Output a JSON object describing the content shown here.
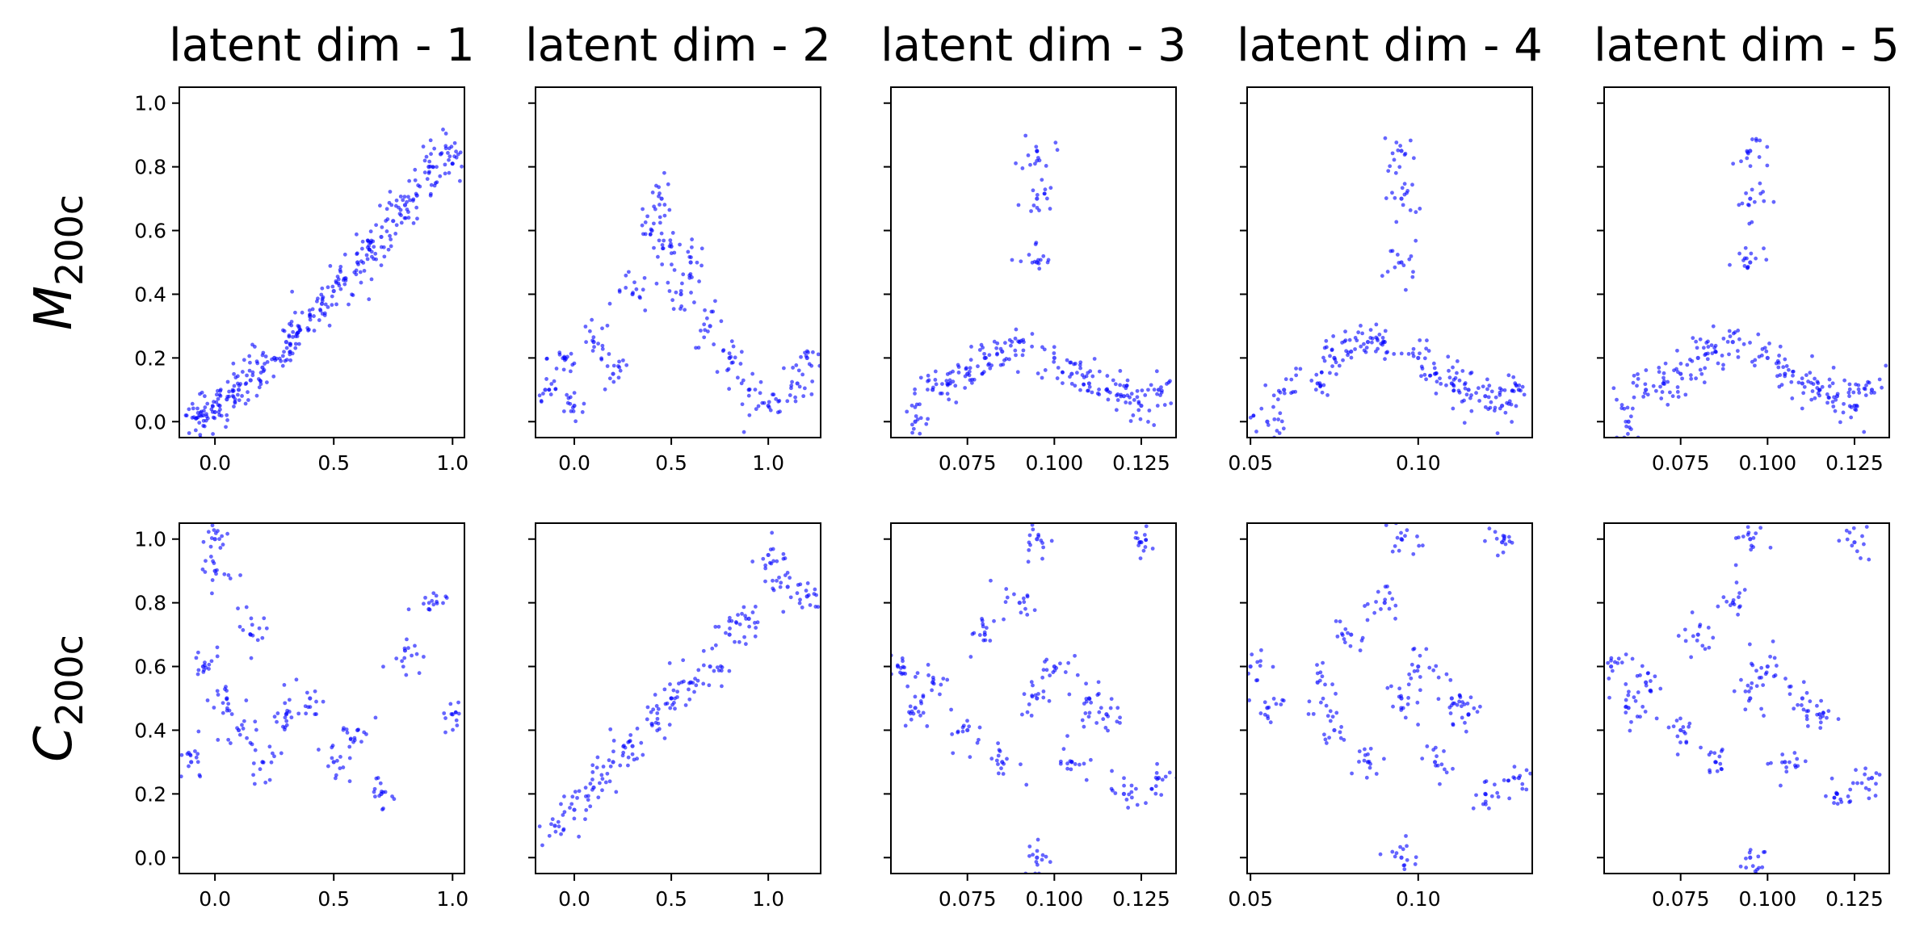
{
  "chart_data": {
    "type": "scatter",
    "point_color": "#0000ff",
    "column_titles": [
      "latent dim - 1",
      "latent dim - 2",
      "latent dim - 3",
      "latent dim - 4",
      "latent dim - 5"
    ],
    "rows": [
      {
        "name": "M",
        "subscript": "200c",
        "ylim": [
          -0.05,
          1.05
        ],
        "yticks": [
          "0.0",
          "0.2",
          "0.4",
          "0.6",
          "0.8",
          "1.0"
        ]
      },
      {
        "name": "C",
        "subscript": "200c",
        "ylim": [
          -0.05,
          1.05
        ],
        "yticks": [
          "0.0",
          "0.2",
          "0.4",
          "0.6",
          "0.8",
          "1.0"
        ]
      }
    ],
    "columns": [
      {
        "xlim": [
          -0.15,
          1.05
        ],
        "xticks": [
          "0.0",
          "0.5",
          "1.0"
        ],
        "xtick_values": [
          0.0,
          0.5,
          1.0
        ]
      },
      {
        "xlim": [
          -0.2,
          1.27
        ],
        "xticks": [
          "0.0",
          "0.5",
          "1.0"
        ],
        "xtick_values": [
          0.0,
          0.5,
          1.0
        ]
      },
      {
        "xlim": [
          0.053,
          0.135
        ],
        "xticks": [
          "0.075",
          "0.100",
          "0.125"
        ],
        "xtick_values": [
          0.075,
          0.1,
          0.125
        ]
      },
      {
        "xlim": [
          0.049,
          0.134
        ],
        "xticks": [
          "0.05",
          "0.10"
        ],
        "xtick_values": [
          0.05,
          0.1
        ]
      },
      {
        "xlim": [
          0.053,
          0.135
        ],
        "xticks": [
          "0.075",
          "0.100",
          "0.125"
        ],
        "xtick_values": [
          0.075,
          0.1,
          0.125
        ]
      }
    ],
    "panels": [
      {
        "row": 0,
        "col": 0,
        "x": [
          -0.08,
          -0.05,
          0.0,
          0.02,
          0.05,
          0.1,
          0.15,
          0.2,
          0.25,
          0.3,
          0.35,
          0.4,
          0.45,
          0.5,
          0.55,
          0.6,
          0.65,
          0.7,
          0.75,
          0.8,
          0.85,
          0.9,
          0.95,
          1.0
        ],
        "y": [
          0.01,
          0.02,
          0.03,
          0.05,
          0.07,
          0.1,
          0.13,
          0.17,
          0.2,
          0.25,
          0.28,
          0.33,
          0.37,
          0.41,
          0.45,
          0.5,
          0.54,
          0.58,
          0.63,
          0.68,
          0.71,
          0.8,
          0.84,
          0.81
        ]
      },
      {
        "row": 0,
        "col": 1,
        "x": [
          -0.15,
          -0.05,
          0.0,
          0.1,
          0.2,
          0.3,
          0.4,
          0.45,
          0.5,
          0.55,
          0.6,
          0.7,
          0.8,
          0.9,
          1.0,
          1.15,
          1.2
        ],
        "y": [
          0.1,
          0.2,
          0.05,
          0.25,
          0.15,
          0.4,
          0.6,
          0.7,
          0.55,
          0.4,
          0.5,
          0.3,
          0.2,
          0.1,
          0.05,
          0.12,
          0.2
        ]
      },
      {
        "row": 0,
        "col": 2,
        "x": [
          0.06,
          0.065,
          0.07,
          0.075,
          0.08,
          0.085,
          0.09,
          0.095,
          0.095,
          0.095,
          0.1,
          0.105,
          0.11,
          0.115,
          0.12,
          0.125,
          0.13
        ],
        "y": [
          0.0,
          0.1,
          0.12,
          0.15,
          0.2,
          0.22,
          0.25,
          0.5,
          0.7,
          0.85,
          0.2,
          0.15,
          0.12,
          0.1,
          0.08,
          0.05,
          0.1
        ]
      },
      {
        "row": 0,
        "col": 3,
        "x": [
          0.055,
          0.06,
          0.07,
          0.075,
          0.08,
          0.085,
          0.09,
          0.095,
          0.095,
          0.095,
          0.1,
          0.105,
          0.11,
          0.115,
          0.12,
          0.125,
          0.13
        ],
        "y": [
          0.0,
          0.1,
          0.12,
          0.2,
          0.22,
          0.25,
          0.25,
          0.5,
          0.7,
          0.85,
          0.2,
          0.15,
          0.12,
          0.1,
          0.08,
          0.05,
          0.1
        ]
      },
      {
        "row": 0,
        "col": 4,
        "x": [
          0.06,
          0.065,
          0.07,
          0.075,
          0.08,
          0.085,
          0.09,
          0.095,
          0.095,
          0.095,
          0.1,
          0.105,
          0.11,
          0.115,
          0.12,
          0.125,
          0.13
        ],
        "y": [
          0.0,
          0.1,
          0.12,
          0.15,
          0.2,
          0.22,
          0.25,
          0.5,
          0.7,
          0.85,
          0.2,
          0.15,
          0.12,
          0.1,
          0.08,
          0.05,
          0.1
        ]
      },
      {
        "row": 1,
        "col": 0,
        "x": [
          -0.1,
          -0.05,
          0.0,
          0.0,
          0.05,
          0.1,
          0.15,
          0.2,
          0.3,
          0.4,
          0.5,
          0.6,
          0.7,
          0.8,
          0.9,
          1.0
        ],
        "y": [
          0.3,
          0.6,
          0.9,
          1.0,
          0.5,
          0.4,
          0.7,
          0.3,
          0.45,
          0.5,
          0.3,
          0.4,
          0.2,
          0.65,
          0.78,
          0.45
        ]
      },
      {
        "row": 1,
        "col": 1,
        "x": [
          -0.1,
          0.0,
          0.1,
          0.2,
          0.3,
          0.4,
          0.5,
          0.6,
          0.7,
          0.8,
          0.9,
          1.0,
          1.1,
          1.2
        ],
        "y": [
          0.1,
          0.15,
          0.22,
          0.3,
          0.35,
          0.42,
          0.5,
          0.55,
          0.6,
          0.7,
          0.75,
          0.95,
          0.85,
          0.82
        ]
      },
      {
        "row": 1,
        "col": 2,
        "x": [
          0.055,
          0.06,
          0.065,
          0.075,
          0.08,
          0.085,
          0.09,
          0.095,
          0.095,
          0.095,
          0.1,
          0.105,
          0.11,
          0.115,
          0.12,
          0.125,
          0.13
        ],
        "y": [
          0.6,
          0.47,
          0.55,
          0.4,
          0.7,
          0.3,
          0.8,
          0.0,
          0.5,
          1.0,
          0.6,
          0.3,
          0.5,
          0.45,
          0.2,
          0.99,
          0.25
        ]
      },
      {
        "row": 1,
        "col": 3,
        "x": [
          0.05,
          0.055,
          0.07,
          0.075,
          0.08,
          0.085,
          0.09,
          0.095,
          0.095,
          0.095,
          0.1,
          0.105,
          0.11,
          0.115,
          0.12,
          0.125,
          0.13
        ],
        "y": [
          0.6,
          0.47,
          0.55,
          0.4,
          0.7,
          0.3,
          0.8,
          0.0,
          0.5,
          1.0,
          0.6,
          0.3,
          0.5,
          0.45,
          0.2,
          0.99,
          0.25
        ]
      },
      {
        "row": 1,
        "col": 4,
        "x": [
          0.055,
          0.06,
          0.065,
          0.075,
          0.08,
          0.085,
          0.09,
          0.095,
          0.095,
          0.095,
          0.1,
          0.105,
          0.11,
          0.115,
          0.12,
          0.125,
          0.13
        ],
        "y": [
          0.6,
          0.47,
          0.55,
          0.4,
          0.7,
          0.3,
          0.8,
          0.0,
          0.5,
          1.0,
          0.6,
          0.3,
          0.5,
          0.45,
          0.2,
          0.99,
          0.25
        ]
      }
    ]
  }
}
